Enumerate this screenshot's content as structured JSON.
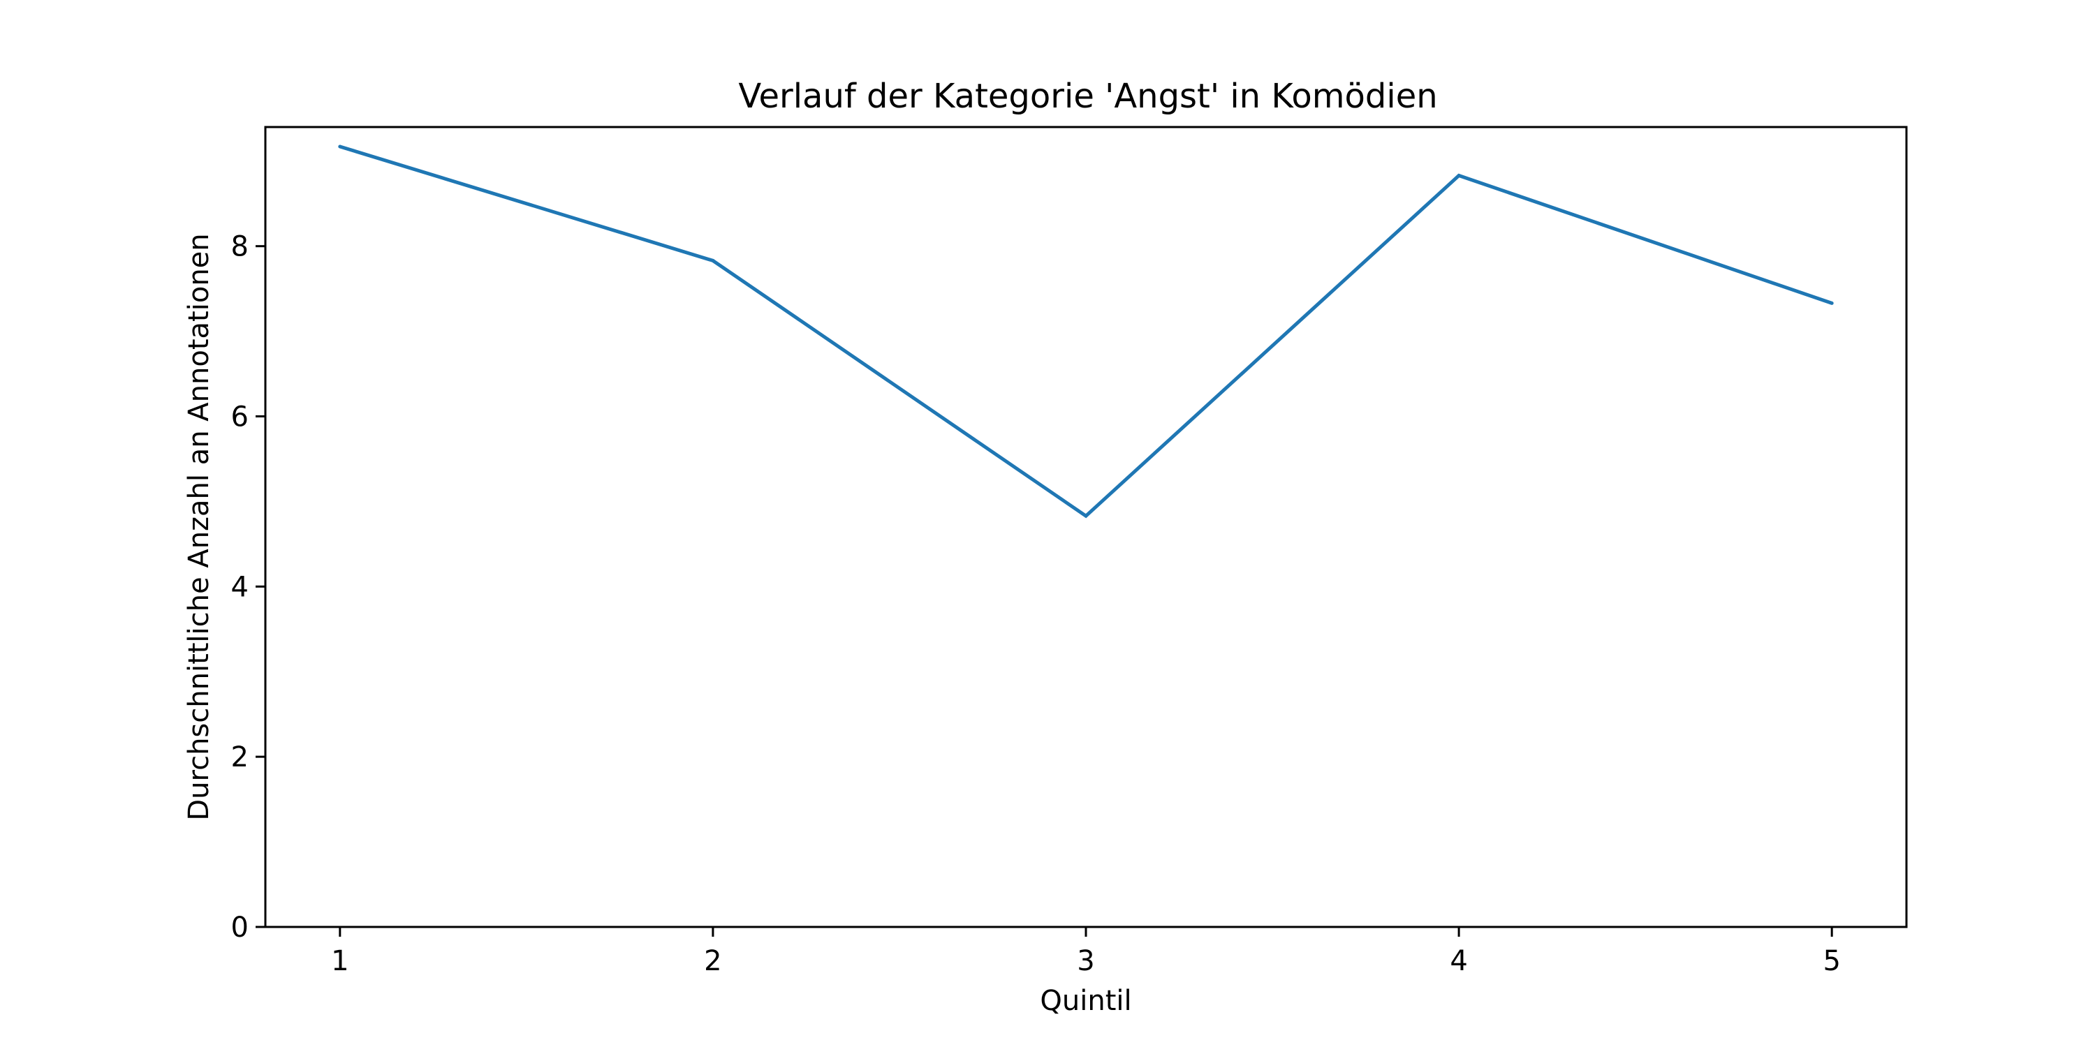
{
  "chart_data": {
    "type": "line",
    "title": "Verlauf der Kategorie 'Angst' in Komödien",
    "xlabel": "Quintil",
    "ylabel": "Durchschnittliche Anzahl an Annotationen",
    "x": [
      1,
      2,
      3,
      4,
      5
    ],
    "x_tick_labels": [
      "1",
      "2",
      "3",
      "4",
      "5"
    ],
    "y_ticks": [
      0,
      2,
      4,
      6,
      8
    ],
    "y_tick_labels": [
      "0",
      "2",
      "4",
      "6",
      "8"
    ],
    "xlim": [
      0.8,
      5.2
    ],
    "ylim": [
      0,
      9.4
    ],
    "grid": false,
    "series": [
      {
        "values": [
          9.17,
          7.83,
          4.83,
          8.83,
          7.33
        ],
        "color": "#1f77b4"
      }
    ]
  }
}
